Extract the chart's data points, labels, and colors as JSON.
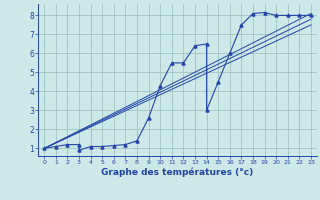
{
  "bg_color": "#cce8e8",
  "grid_color": "#99bbbb",
  "line_color": "#2244aa",
  "xlabel": "Graphe des températures (°c)",
  "xlim": [
    -0.5,
    23.5
  ],
  "ylim": [
    0.6,
    8.6
  ],
  "xticks": [
    0,
    1,
    2,
    3,
    4,
    5,
    6,
    7,
    8,
    9,
    10,
    11,
    12,
    13,
    14,
    15,
    16,
    17,
    18,
    19,
    20,
    21,
    22,
    23
  ],
  "yticks": [
    1,
    2,
    3,
    4,
    5,
    6,
    7,
    8
  ],
  "data_line": {
    "x": [
      0,
      1,
      2,
      3,
      3,
      4,
      5,
      6,
      7,
      8,
      9,
      10,
      11,
      12,
      13,
      14,
      14,
      15,
      16,
      17,
      18,
      19,
      20,
      21,
      22,
      23
    ],
    "y": [
      1.0,
      1.1,
      1.2,
      1.2,
      0.9,
      1.1,
      1.1,
      1.15,
      1.2,
      1.4,
      2.6,
      4.3,
      5.5,
      5.5,
      6.4,
      6.5,
      3.0,
      4.5,
      6.0,
      7.5,
      8.1,
      8.15,
      8.0,
      8.0,
      8.0,
      8.0
    ]
  },
  "reg_line1": {
    "x": [
      0,
      23
    ],
    "y": [
      1.0,
      7.8
    ]
  },
  "reg_line2": {
    "x": [
      0,
      23
    ],
    "y": [
      1.0,
      8.1
    ]
  },
  "reg_line3": {
    "x": [
      0,
      23
    ],
    "y": [
      1.0,
      7.5
    ]
  }
}
